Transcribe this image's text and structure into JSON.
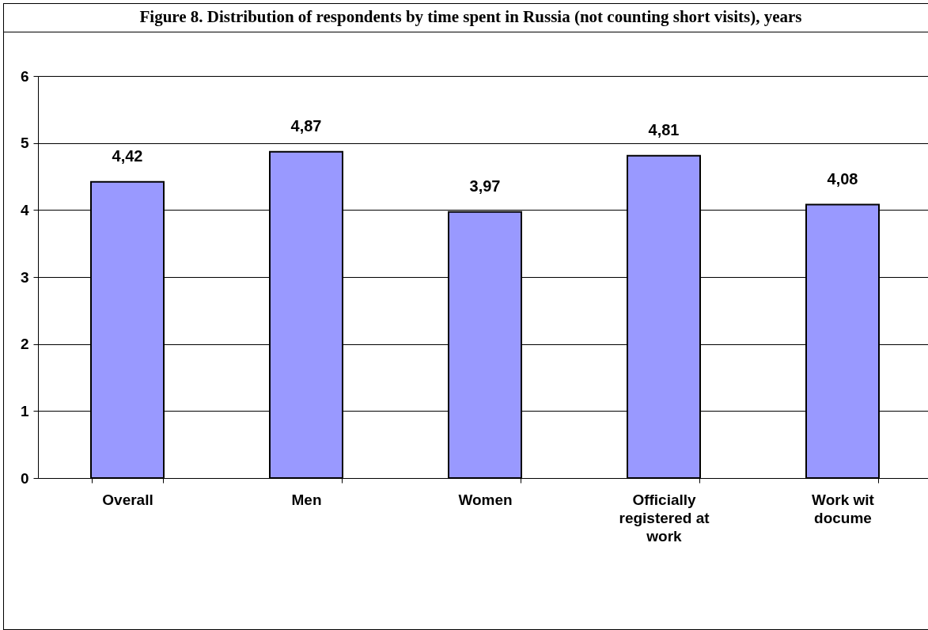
{
  "chart_data": {
    "type": "bar",
    "title": "Figure 8. Distribution of respondents by time spent in Russia (not counting short visits), years",
    "categories": [
      "Overall",
      "Men",
      "Women",
      "Officially\nregistered at\nwork",
      "Work wit\ndocume"
    ],
    "values": [
      4.42,
      4.87,
      3.97,
      4.81,
      4.08
    ],
    "value_labels": [
      "4,42",
      "4,87",
      "3,97",
      "4,81",
      "4,08"
    ],
    "color": "#9999ff",
    "ylim": [
      0,
      6
    ],
    "yticks": [
      0,
      1,
      2,
      3,
      4,
      5,
      6
    ],
    "grid": "y"
  }
}
